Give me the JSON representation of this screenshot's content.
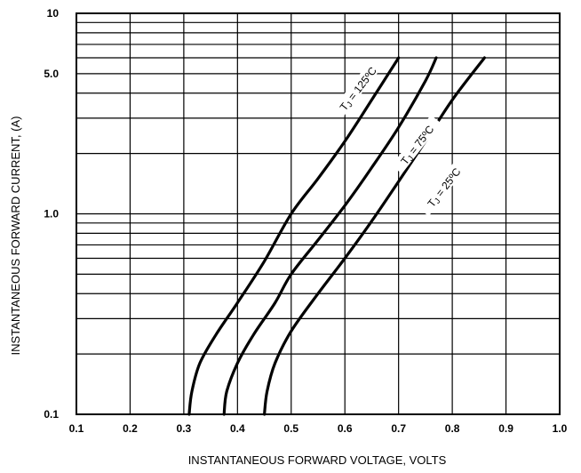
{
  "chart_data": {
    "type": "line",
    "title": "",
    "xlabel": "INSTANTANEOUS FORWARD VOLTAGE, VOLTS",
    "ylabel": "INSTANTANEOUS  FORWARD CURRENT, (A)",
    "xlim": [
      0.1,
      1.0
    ],
    "ylim": [
      0.1,
      10
    ],
    "yscale": "log",
    "grid": true,
    "legend": "none",
    "x_ticks": [
      "0.1",
      "0.2",
      "0.3",
      "0.4",
      "0.5",
      "0.6",
      "0.7",
      "0.8",
      "0.9",
      "1.0"
    ],
    "y_ticks": [
      {
        "value": 0.1,
        "label": "0.1"
      },
      {
        "value": 1.0,
        "label": "1.0"
      },
      {
        "value": 5.0,
        "label": "5.0"
      },
      {
        "value": 10,
        "label": "10"
      }
    ],
    "series": [
      {
        "label": {
          "prefix": "T",
          "sub": "J",
          "text": " = 125ºC"
        },
        "label_at": [
          0.625,
          4.2
        ],
        "points": [
          [
            0.31,
            0.1
          ],
          [
            0.315,
            0.13
          ],
          [
            0.33,
            0.18
          ],
          [
            0.36,
            0.25
          ],
          [
            0.4,
            0.36
          ],
          [
            0.45,
            0.58
          ],
          [
            0.5,
            1.0
          ],
          [
            0.55,
            1.5
          ],
          [
            0.6,
            2.3
          ],
          [
            0.65,
            3.7
          ],
          [
            0.7,
            6.0
          ]
        ]
      },
      {
        "label": {
          "prefix": "T",
          "sub": "J",
          "text": " = 75ºC"
        },
        "label_at": [
          0.735,
          2.2
        ],
        "points": [
          [
            0.375,
            0.1
          ],
          [
            0.38,
            0.13
          ],
          [
            0.4,
            0.18
          ],
          [
            0.43,
            0.25
          ],
          [
            0.47,
            0.36
          ],
          [
            0.5,
            0.5
          ],
          [
            0.55,
            0.74
          ],
          [
            0.6,
            1.1
          ],
          [
            0.65,
            1.7
          ],
          [
            0.7,
            2.7
          ],
          [
            0.75,
            4.6
          ],
          [
            0.77,
            6.0
          ]
        ]
      },
      {
        "label": {
          "prefix": "T",
          "sub": "J",
          "text": " = 25ºC"
        },
        "label_at": [
          0.785,
          1.35
        ],
        "points": [
          [
            0.45,
            0.1
          ],
          [
            0.455,
            0.13
          ],
          [
            0.47,
            0.18
          ],
          [
            0.5,
            0.26
          ],
          [
            0.55,
            0.4
          ],
          [
            0.6,
            0.6
          ],
          [
            0.65,
            0.92
          ],
          [
            0.7,
            1.45
          ],
          [
            0.75,
            2.3
          ],
          [
            0.8,
            3.7
          ],
          [
            0.86,
            6.0
          ]
        ]
      }
    ]
  }
}
